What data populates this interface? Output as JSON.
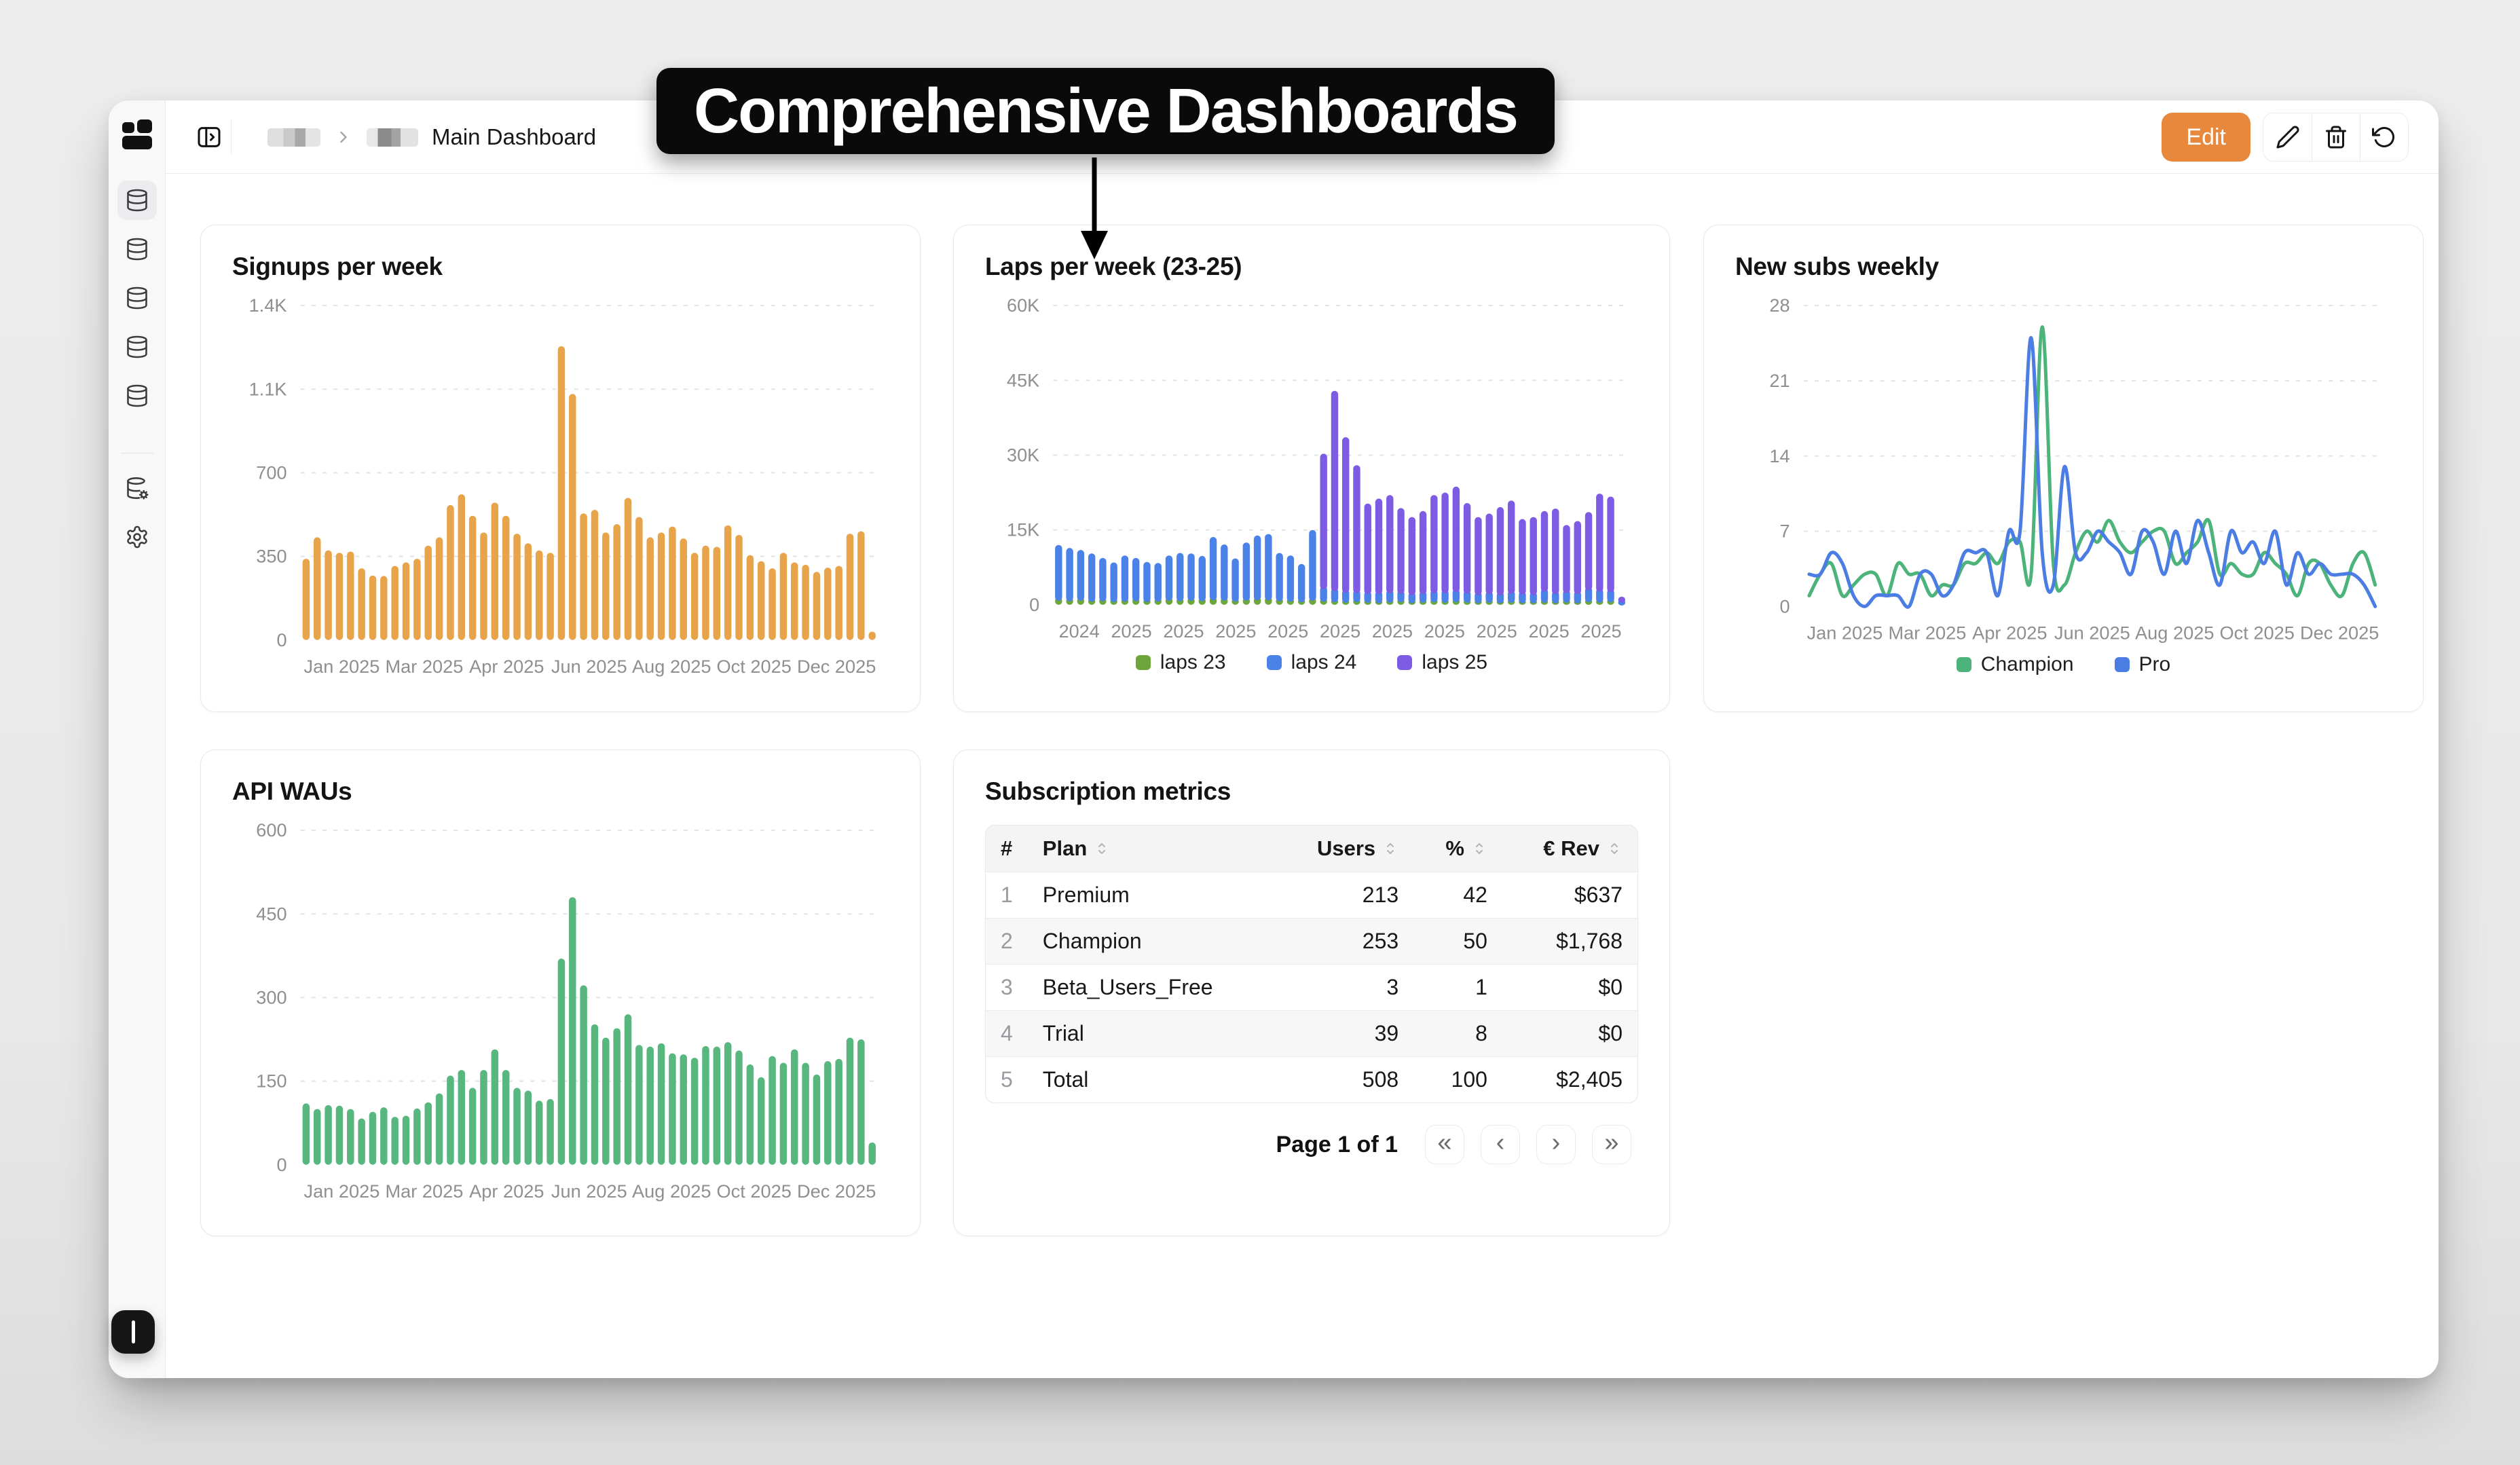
{
  "overlay": {
    "title": "Comprehensive Dashboards"
  },
  "sidebar": {
    "logo_icon": "dashboard-logo",
    "nav": [
      {
        "icon": "database",
        "name": "dashboards",
        "active": true
      },
      {
        "icon": "database",
        "name": "datasource-2",
        "active": false
      },
      {
        "icon": "database",
        "name": "datasource-3",
        "active": false
      },
      {
        "icon": "database",
        "name": "datasource-4",
        "active": false
      },
      {
        "icon": "database",
        "name": "datasource-5",
        "active": false
      }
    ],
    "footer_nav": [
      {
        "icon": "database-gear",
        "name": "data-settings"
      },
      {
        "icon": "gear",
        "name": "settings"
      }
    ]
  },
  "header": {
    "breadcrumb_current": "Main Dashboard",
    "edit_label": "Edit",
    "action_icons": [
      "pencil",
      "trash",
      "rotate-ccw"
    ]
  },
  "chart_data": [
    {
      "id": "signups",
      "type": "bar",
      "title": "Signups per week",
      "color": "#E8A44A",
      "ylim": [
        0,
        1400
      ],
      "yticks": [
        "0",
        "350",
        "700",
        "1.1K",
        "1.4K"
      ],
      "grid": true,
      "x_labels": [
        "Jan 2025",
        "Mar 2025",
        "Apr 2025",
        "Jun 2025",
        "Aug 2025",
        "Oct 2025",
        "Dec 2025"
      ],
      "values": [
        340,
        430,
        375,
        365,
        370,
        300,
        270,
        268,
        310,
        325,
        340,
        395,
        430,
        565,
        610,
        520,
        450,
        575,
        520,
        445,
        405,
        375,
        365,
        1230,
        1030,
        530,
        545,
        450,
        485,
        595,
        515,
        430,
        450,
        475,
        425,
        365,
        395,
        390,
        480,
        440,
        355,
        330,
        300,
        365,
        325,
        315,
        285,
        303,
        310,
        445,
        455,
        35
      ]
    },
    {
      "id": "laps",
      "type": "bar-stacked",
      "title": "Laps per week (23-25)",
      "ylim": [
        0,
        60000
      ],
      "yticks": [
        "0",
        "15K",
        "30K",
        "45K",
        "60K"
      ],
      "grid": true,
      "legend_position": "bottom",
      "x_labels": [
        "2024",
        "2025",
        "2025",
        "2025",
        "2025",
        "2025",
        "2025",
        "2025",
        "2025",
        "2025",
        "2025"
      ],
      "series": [
        {
          "name": "laps 23",
          "color": "#6FA63C",
          "values": [
            1500,
            1400,
            1500,
            1300,
            1400,
            1200,
            1300,
            1400,
            1200,
            1300,
            1500,
            1400,
            1500,
            1400,
            1600,
            1500,
            1300,
            1500,
            1600,
            1600,
            1400,
            1300,
            1200,
            1500,
            1300,
            1200,
            1100,
            1200,
            1100,
            1000,
            1100,
            1200,
            1000,
            1100,
            1200,
            1100,
            1200,
            1100,
            1000,
            1100,
            1000,
            1100,
            1000,
            1000,
            1100,
            1000,
            1100,
            1000,
            1200,
            1100,
            1200,
            200
          ]
        },
        {
          "name": "laps 24",
          "color": "#4A82E8",
          "values": [
            10500,
            10000,
            9500,
            9000,
            8000,
            7300,
            8600,
            8000,
            7400,
            7100,
            8400,
            9000,
            8800,
            8400,
            12000,
            10600,
            8000,
            11000,
            12300,
            12600,
            9000,
            8600,
            7000,
            13500,
            2500,
            2200,
            2000,
            1800,
            1700,
            1800,
            1900,
            1700,
            1600,
            1700,
            1800,
            1900,
            2000,
            1800,
            1600,
            1700,
            1600,
            1800,
            1700,
            1600,
            2200,
            1800,
            1900,
            1800,
            2400,
            2200,
            2000,
            300
          ]
        },
        {
          "name": "laps 25",
          "color": "#7D5BE3",
          "values": [
            0,
            0,
            0,
            0,
            0,
            0,
            0,
            0,
            0,
            0,
            0,
            0,
            0,
            0,
            0,
            0,
            0,
            0,
            0,
            0,
            0,
            0,
            0,
            0,
            26500,
            39500,
            30500,
            25000,
            17500,
            18500,
            19000,
            16500,
            15000,
            16000,
            19000,
            19500,
            20500,
            17500,
            15000,
            15500,
            17000,
            18000,
            14500,
            15000,
            15500,
            16500,
            13000,
            14000,
            15000,
            19000,
            18500,
            500
          ]
        }
      ]
    },
    {
      "id": "newsubs",
      "type": "line",
      "title": "New subs weekly",
      "ylim": [
        0,
        28
      ],
      "yticks": [
        "0",
        "7",
        "14",
        "21",
        "28"
      ],
      "grid": true,
      "legend_position": "bottom",
      "x_labels": [
        "Jan 2025",
        "Mar 2025",
        "Apr 2025",
        "Jun 2025",
        "Aug 2025",
        "Oct 2025",
        "Dec 2025"
      ],
      "series": [
        {
          "name": "Champion",
          "color": "#4CB37A",
          "values": [
            1,
            3,
            4,
            1,
            2,
            3,
            3,
            1,
            4,
            3,
            3,
            1,
            2,
            2,
            4,
            4,
            5,
            4,
            6,
            6,
            3,
            26,
            4,
            2,
            5,
            7,
            6,
            8,
            6,
            5,
            6,
            7,
            7,
            4,
            5,
            6,
            8,
            3,
            4,
            3,
            3,
            5,
            4,
            3,
            1,
            4,
            4,
            2,
            1,
            4,
            5,
            2
          ]
        },
        {
          "name": "Pro",
          "color": "#4B7DE2",
          "values": [
            3,
            3,
            5,
            4,
            1,
            0,
            1,
            1,
            1,
            0,
            3,
            3,
            1,
            2,
            5,
            5,
            5,
            1,
            7,
            7,
            25,
            5,
            2,
            13,
            5,
            5,
            7,
            6,
            5,
            3,
            7,
            6,
            3,
            7,
            4,
            8,
            5,
            2,
            7,
            5,
            6,
            4,
            7,
            2,
            5,
            3,
            4,
            3,
            3,
            3,
            2,
            0
          ]
        }
      ]
    },
    {
      "id": "apiwaus",
      "type": "bar",
      "title": "API WAUs",
      "color": "#58B77E",
      "ylim": [
        0,
        600
      ],
      "yticks": [
        "0",
        "150",
        "300",
        "450",
        "600"
      ],
      "grid": true,
      "x_labels": [
        "Jan 2025",
        "Mar 2025",
        "Apr 2025",
        "Jun 2025",
        "Aug 2025",
        "Oct 2025",
        "Dec 2025"
      ],
      "values": [
        110,
        100,
        107,
        106,
        100,
        83,
        95,
        103,
        86,
        88,
        101,
        112,
        128,
        160,
        170,
        138,
        170,
        207,
        170,
        138,
        133,
        115,
        118,
        370,
        480,
        322,
        252,
        228,
        245,
        270,
        215,
        212,
        218,
        200,
        198,
        192,
        213,
        212,
        220,
        205,
        180,
        157,
        195,
        183,
        207,
        183,
        162,
        186,
        190,
        228,
        225,
        40
      ]
    }
  ],
  "table": {
    "title": "Subscription metrics",
    "columns": [
      {
        "label": "#",
        "sortable": false,
        "align": "left"
      },
      {
        "label": "Plan",
        "sortable": true,
        "align": "left"
      },
      {
        "label": "Users",
        "sortable": true,
        "align": "right"
      },
      {
        "label": "%",
        "sortable": true,
        "align": "right"
      },
      {
        "label": "€ Rev",
        "sortable": true,
        "align": "right"
      }
    ],
    "rows": [
      [
        "1",
        "Premium",
        "213",
        "42",
        "$637"
      ],
      [
        "2",
        "Champion",
        "253",
        "50",
        "$1,768"
      ],
      [
        "3",
        "Beta_Users_Free",
        "3",
        "1",
        "$0"
      ],
      [
        "4",
        "Trial",
        "39",
        "8",
        "$0"
      ],
      [
        "5",
        "Total",
        "508",
        "100",
        "$2,405"
      ]
    ],
    "pagination": {
      "label": "Page 1 of 1",
      "buttons": [
        "«",
        "‹",
        "›",
        "»"
      ]
    }
  }
}
